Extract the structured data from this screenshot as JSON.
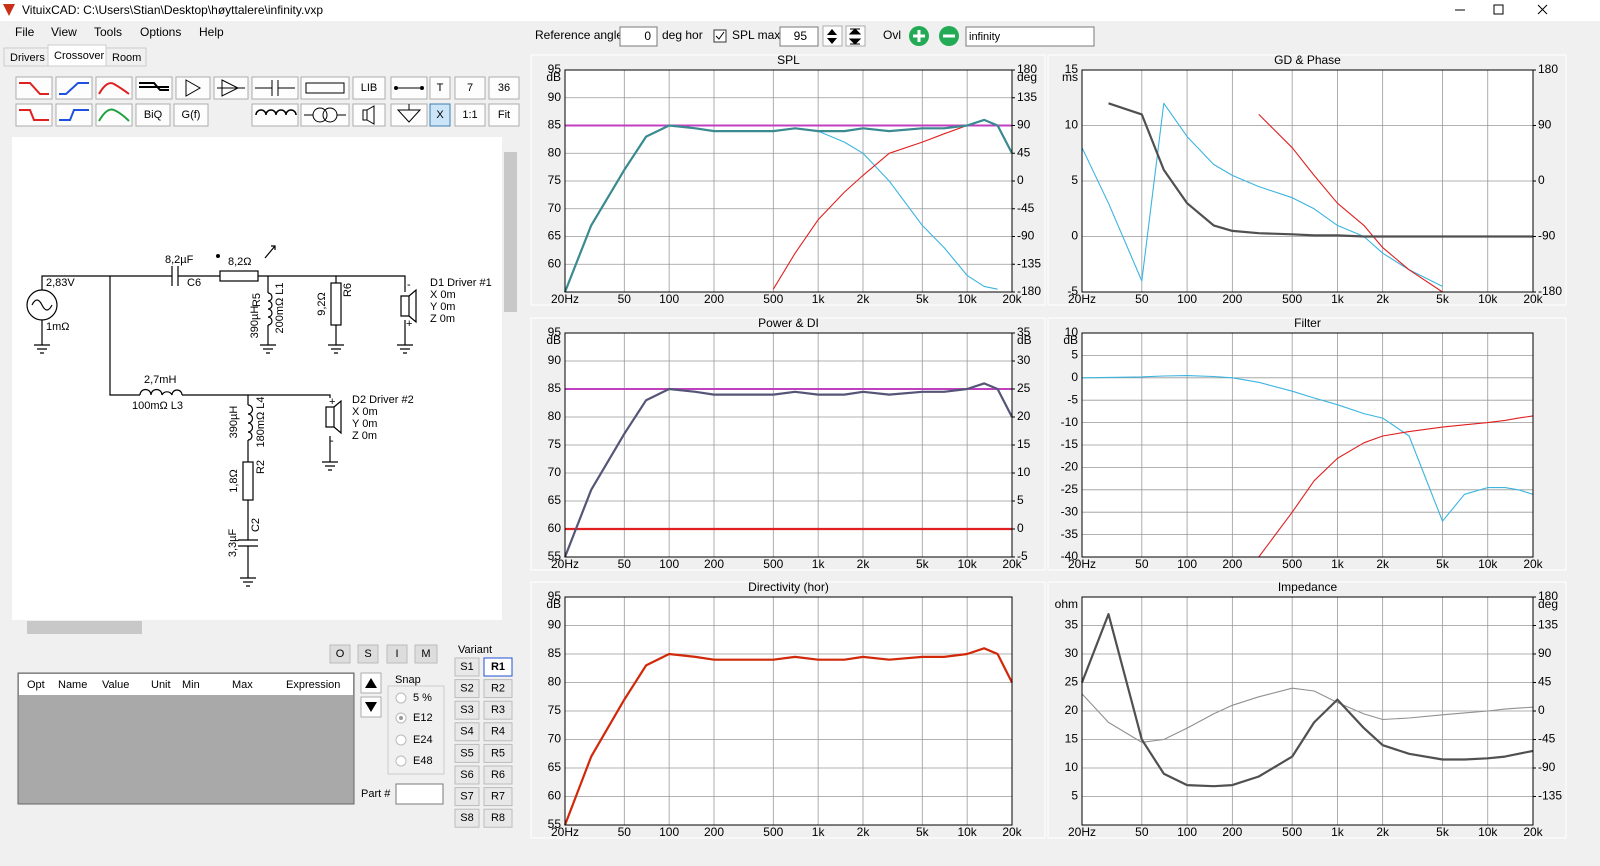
{
  "window": {
    "title": "VituixCAD: C:\\Users\\Stian\\Desktop\\høyttalere\\infinity.vxp"
  },
  "menu": [
    "File",
    "View",
    "Tools",
    "Options",
    "Help"
  ],
  "tabs": [
    "Drivers",
    "Crossover",
    "Room"
  ],
  "toolbar": [
    "LIB",
    "T",
    "7",
    "36",
    "BiQ",
    "G(f)",
    "X",
    "1:1",
    "Fit"
  ],
  "schematic": {
    "labels": [
      "2,83V",
      "1mΩ",
      "8,2µF",
      "C6",
      "8,2Ω",
      "R5",
      "390µH",
      "200mΩ L1",
      "9,2Ω",
      "R6",
      "D1 Driver #1",
      "X 0m",
      "Y 0m",
      "Z 0m",
      "2,7mH",
      "100mΩ L3",
      "390µH",
      "180mΩ L4",
      "1,8Ω",
      "R2",
      "3,3µF",
      "C2",
      "D2 Driver #2",
      "X 0m",
      "Y 0m",
      "Z 0m",
      "-",
      "+",
      "+",
      "-"
    ]
  },
  "table": {
    "headers": [
      "Opt",
      "Name",
      "Value",
      "Unit",
      "Min",
      "Max",
      "Expression"
    ]
  },
  "part_buttons": [
    "O",
    "S",
    "I",
    "M"
  ],
  "variant": {
    "label": "Variant",
    "s": [
      "S1",
      "S2",
      "S3",
      "S4",
      "S5",
      "S6",
      "S7",
      "S8"
    ],
    "r": [
      "R1",
      "R2",
      "R3",
      "R4",
      "R5",
      "R6",
      "R7",
      "R8"
    ]
  },
  "snap": {
    "label": "Snap",
    "options": [
      "5 %",
      "E12",
      "E24",
      "E48"
    ]
  },
  "part_label": "Part #",
  "top_bar": {
    "reference_angle_label": "Reference angle",
    "reference_angle": "0",
    "deg_hor": "deg hor",
    "spl_max_label": "SPL max",
    "spl_max": "95",
    "ovl": "Ovl",
    "name": "infinity"
  },
  "chart_data": [
    {
      "type": "line",
      "title": "SPL",
      "log_x": true,
      "x": [
        20,
        30,
        50,
        70,
        100,
        150,
        200,
        300,
        500,
        700,
        1000,
        1500,
        2000,
        3000,
        5000,
        7000,
        10000,
        13000,
        16000,
        20000
      ],
      "xlim": [
        20,
        20000
      ],
      "xticks": [
        {
          "value": 20,
          "label": "20Hz"
        },
        50,
        100,
        200,
        500,
        {
          "value": 1000,
          "label": "1k"
        },
        {
          "value": 2000,
          "label": "2k"
        },
        {
          "value": 5000,
          "label": "5k"
        },
        {
          "value": 10000,
          "label": "10k"
        },
        {
          "value": 20000,
          "label": "20k"
        }
      ],
      "ylim": [
        55,
        95
      ],
      "yticks": [
        60,
        65,
        70,
        75,
        80,
        85,
        90,
        95
      ],
      "y_unit": "dB",
      "y2lim": [
        -180,
        180
      ],
      "y2ticks": [
        -180,
        -135,
        -90,
        -45,
        0,
        45,
        90,
        135,
        180
      ],
      "y2_unit": "deg",
      "reference_line": 85,
      "reference_color": "#c040c0",
      "series": [
        {
          "color": "#3bb4e0",
          "values": [
            55,
            67,
            77,
            83,
            85,
            84.5,
            84,
            84,
            84,
            84.5,
            84,
            82,
            80,
            75,
            67,
            63,
            58,
            56,
            55.5,
            null
          ]
        },
        {
          "color": "#e02020",
          "values": [
            null,
            null,
            null,
            null,
            null,
            null,
            null,
            null,
            55.5,
            62,
            68,
            73,
            76,
            80,
            82,
            83.5,
            85,
            86,
            85,
            80
          ]
        },
        {
          "color": "#3a8a90",
          "thick": true,
          "values": [
            55,
            67,
            77,
            83,
            85,
            84.5,
            84,
            84,
            84,
            84.5,
            84,
            84,
            84.5,
            84,
            84.5,
            84.5,
            85,
            86,
            85,
            80
          ]
        }
      ]
    },
    {
      "type": "line",
      "title": "GD & Phase",
      "log_x": true,
      "x": [
        20,
        30,
        50,
        70,
        100,
        150,
        200,
        300,
        500,
        700,
        1000,
        1500,
        2000,
        3000,
        5000,
        7000,
        10000,
        13000,
        16000,
        20000
      ],
      "xlim": [
        20,
        20000
      ],
      "xticks": [
        {
          "value": 20,
          "label": "20Hz"
        },
        50,
        100,
        200,
        500,
        {
          "value": 1000,
          "label": "1k"
        },
        {
          "value": 2000,
          "label": "2k"
        },
        {
          "value": 5000,
          "label": "5k"
        },
        {
          "value": 10000,
          "label": "10k"
        },
        {
          "value": 20000,
          "label": "20k"
        }
      ],
      "ylim": [
        -5,
        15
      ],
      "yticks": [
        -5,
        0,
        5,
        10,
        15
      ],
      "y_unit": "ms",
      "y2lim": [
        -180,
        180
      ],
      "y2ticks": [
        -180,
        -90,
        0,
        90,
        180
      ],
      "series": [
        {
          "color": "#3bb4e0",
          "values": [
            8,
            3,
            -4,
            12,
            9,
            6.5,
            5.5,
            4.5,
            3.5,
            2.5,
            1,
            0,
            -1.5,
            -3,
            -4.5,
            null,
            null,
            null,
            null,
            null
          ]
        },
        {
          "color": "#e02020",
          "values": [
            null,
            null,
            null,
            null,
            null,
            null,
            null,
            11,
            8,
            5.5,
            3,
            1,
            -1,
            -3,
            -5,
            null,
            null,
            null,
            null,
            null
          ]
        },
        {
          "color": "#505050",
          "thick": true,
          "values": [
            null,
            12,
            11,
            6,
            3,
            1,
            0.5,
            0.3,
            0.2,
            0.1,
            0.1,
            0,
            0,
            0,
            0,
            0,
            0,
            0,
            0,
            0
          ]
        }
      ]
    },
    {
      "type": "line",
      "title": "Power & DI",
      "log_x": true,
      "x": [
        20,
        30,
        50,
        70,
        100,
        150,
        200,
        300,
        500,
        700,
        1000,
        1500,
        2000,
        3000,
        5000,
        7000,
        10000,
        13000,
        16000,
        20000
      ],
      "xlim": [
        20,
        20000
      ],
      "xticks": [
        {
          "value": 20,
          "label": "20Hz"
        },
        50,
        100,
        200,
        500,
        {
          "value": 1000,
          "label": "1k"
        },
        {
          "value": 2000,
          "label": "2k"
        },
        {
          "value": 5000,
          "label": "5k"
        },
        {
          "value": 10000,
          "label": "10k"
        },
        {
          "value": 20000,
          "label": "20k"
        }
      ],
      "ylim": [
        55,
        95
      ],
      "yticks": [
        55,
        60,
        65,
        70,
        75,
        80,
        85,
        90,
        95
      ],
      "y_unit": "dB",
      "y2lim": [
        -5,
        35
      ],
      "y2ticks": [
        -5,
        0,
        5,
        10,
        15,
        20,
        25,
        30,
        35
      ],
      "y2_unit": "dB",
      "reference_line": 85,
      "reference_color": "#c040c0",
      "series": [
        {
          "color": "#e02020",
          "thick": true,
          "axis": "y2",
          "values": [
            0,
            0,
            0,
            0,
            0,
            0,
            0,
            0,
            0,
            0,
            0,
            0,
            0,
            0,
            0,
            0,
            0,
            0,
            0,
            0
          ]
        },
        {
          "color": "#555577",
          "thick": true,
          "values": [
            55,
            67,
            77,
            83,
            85,
            84.5,
            84,
            84,
            84,
            84.5,
            84,
            84,
            84.5,
            84,
            84.5,
            84.5,
            85,
            86,
            85,
            80
          ]
        }
      ]
    },
    {
      "type": "line",
      "title": "Filter",
      "log_x": true,
      "x": [
        20,
        30,
        50,
        70,
        100,
        150,
        200,
        300,
        500,
        700,
        1000,
        1500,
        2000,
        3000,
        5000,
        7000,
        10000,
        13000,
        16000,
        20000
      ],
      "xlim": [
        20,
        20000
      ],
      "xticks": [
        {
          "value": 20,
          "label": "20Hz"
        },
        50,
        100,
        200,
        500,
        {
          "value": 1000,
          "label": "1k"
        },
        {
          "value": 2000,
          "label": "2k"
        },
        {
          "value": 5000,
          "label": "5k"
        },
        {
          "value": 10000,
          "label": "10k"
        },
        {
          "value": 20000,
          "label": "20k"
        }
      ],
      "ylim": [
        -40,
        10
      ],
      "yticks": [
        -40,
        -35,
        -30,
        -25,
        -20,
        -15,
        -10,
        -5,
        0,
        5,
        10
      ],
      "y_unit": "dB",
      "series": [
        {
          "color": "#3bb4e0",
          "values": [
            0,
            0.1,
            0.2,
            0.4,
            0.5,
            0.3,
            0,
            -1,
            -3,
            -4.5,
            -6,
            -8,
            -9,
            -13,
            -32,
            -26,
            -24.5,
            -24.5,
            -25,
            -26
          ]
        },
        {
          "color": "#e02020",
          "values": [
            null,
            null,
            null,
            null,
            null,
            null,
            null,
            -40,
            -30,
            -23,
            -18,
            -14.5,
            -13,
            -12,
            -11,
            -10.5,
            -10,
            -9.5,
            -9,
            -8.5
          ]
        }
      ]
    },
    {
      "type": "line",
      "title": "Directivity (hor)",
      "log_x": true,
      "x": [
        20,
        30,
        50,
        70,
        100,
        150,
        200,
        300,
        500,
        700,
        1000,
        1500,
        2000,
        3000,
        5000,
        7000,
        10000,
        13000,
        16000,
        20000
      ],
      "xlim": [
        20,
        20000
      ],
      "xticks": [
        {
          "value": 20,
          "label": "20Hz"
        },
        50,
        100,
        200,
        500,
        {
          "value": 1000,
          "label": "1k"
        },
        {
          "value": 2000,
          "label": "2k"
        },
        {
          "value": 5000,
          "label": "5k"
        },
        {
          "value": 10000,
          "label": "10k"
        },
        {
          "value": 20000,
          "label": "20k"
        }
      ],
      "ylim": [
        55,
        95
      ],
      "yticks": [
        55,
        60,
        65,
        70,
        75,
        80,
        85,
        90,
        95
      ],
      "y_unit": "dB",
      "series": [
        {
          "color": "#d02808",
          "thick": true,
          "values": [
            55,
            67,
            77,
            83,
            85,
            84.5,
            84,
            84,
            84,
            84.5,
            84,
            84,
            84.5,
            84,
            84.5,
            84.5,
            85,
            86,
            85,
            80
          ]
        }
      ]
    },
    {
      "type": "line",
      "title": "Impedance",
      "log_x": true,
      "x": [
        20,
        30,
        50,
        70,
        100,
        150,
        200,
        300,
        500,
        700,
        1000,
        1500,
        2000,
        3000,
        5000,
        7000,
        10000,
        13000,
        16000,
        20000
      ],
      "xlim": [
        20,
        20000
      ],
      "xticks": [
        {
          "value": 20,
          "label": "20Hz"
        },
        50,
        100,
        200,
        500,
        {
          "value": 1000,
          "label": "1k"
        },
        {
          "value": 2000,
          "label": "2k"
        },
        {
          "value": 5000,
          "label": "5k"
        },
        {
          "value": 10000,
          "label": "10k"
        },
        {
          "value": 20000,
          "label": "20k"
        }
      ],
      "ylim": [
        0,
        40
      ],
      "yticks": [
        5,
        10,
        15,
        20,
        25,
        30,
        35
      ],
      "y_unit": "ohm",
      "y2lim": [
        -180,
        180
      ],
      "y2ticks": [
        -135,
        -90,
        -45,
        0,
        45,
        90,
        135,
        180
      ],
      "y2_unit": "deg",
      "series": [
        {
          "color": "#909090",
          "axis": "y2",
          "values": [
            27,
            -18,
            -49.5,
            -45,
            -27,
            -4.5,
            9,
            22.5,
            36,
            31.5,
            13.5,
            -4.5,
            -13.5,
            -11,
            -6,
            -3,
            0,
            3,
            4.5,
            6
          ]
        },
        {
          "color": "#505050",
          "thick": true,
          "values": [
            25,
            37,
            15,
            9,
            7,
            6.8,
            7,
            8.5,
            12,
            18,
            22,
            17,
            14,
            12.5,
            11.5,
            11.5,
            11.7,
            12,
            12.5,
            13
          ]
        }
      ]
    }
  ]
}
